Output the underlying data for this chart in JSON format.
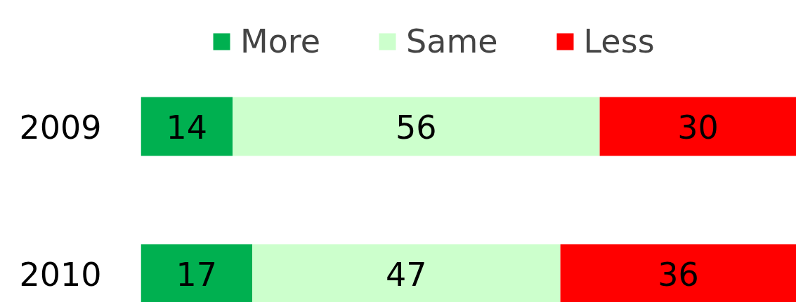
{
  "chart_data": {
    "type": "bar",
    "orientation": "horizontal",
    "stacked": true,
    "data_labels": true,
    "legend": "top",
    "categories": [
      "2009",
      "2010"
    ],
    "series": [
      {
        "name": "More",
        "color": "#00b050",
        "values": [
          14,
          17
        ]
      },
      {
        "name": "Same",
        "color": "#ccffcc",
        "values": [
          56,
          47
        ]
      },
      {
        "name": "Less",
        "color": "#ff0000",
        "values": [
          30,
          36
        ]
      }
    ]
  }
}
